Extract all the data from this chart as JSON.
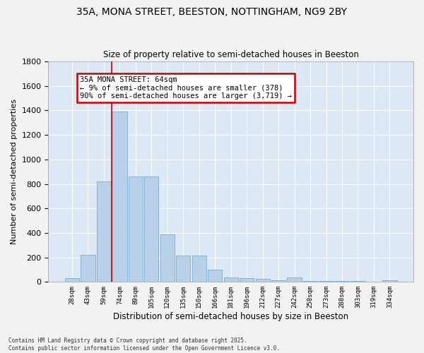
{
  "title1": "35A, MONA STREET, BEESTON, NOTTINGHAM, NG9 2BY",
  "title2": "Size of property relative to semi-detached houses in Beeston",
  "xlabel": "Distribution of semi-detached houses by size in Beeston",
  "ylabel": "Number of semi-detached properties",
  "categories": [
    "28sqm",
    "43sqm",
    "59sqm",
    "74sqm",
    "89sqm",
    "105sqm",
    "120sqm",
    "135sqm",
    "150sqm",
    "166sqm",
    "181sqm",
    "196sqm",
    "212sqm",
    "227sqm",
    "242sqm",
    "258sqm",
    "273sqm",
    "288sqm",
    "303sqm",
    "319sqm",
    "334sqm"
  ],
  "values": [
    30,
    220,
    820,
    1390,
    860,
    860,
    390,
    215,
    215,
    100,
    35,
    30,
    25,
    15,
    35,
    10,
    8,
    5,
    5,
    3,
    15
  ],
  "bar_color": "#b8d0e8",
  "bar_edge_color": "#7aaace",
  "background_color": "#dce8f5",
  "grid_color": "#ffffff",
  "annotation_text": "35A MONA STREET: 64sqm\n← 9% of semi-detached houses are smaller (378)\n90% of semi-detached houses are larger (3,719) →",
  "annotation_box_color": "#ffffff",
  "annotation_box_edge": "#cc0000",
  "vline_color": "#cc0000",
  "footer1": "Contains HM Land Registry data © Crown copyright and database right 2025.",
  "footer2": "Contains public sector information licensed under the Open Government Licence v3.0.",
  "ylim": [
    0,
    1800
  ],
  "yticks": [
    0,
    200,
    400,
    600,
    800,
    1000,
    1200,
    1400,
    1600,
    1800
  ]
}
